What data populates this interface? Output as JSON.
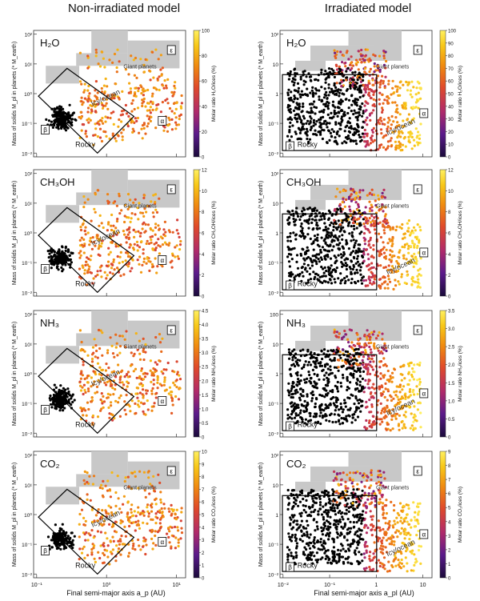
{
  "columns": [
    {
      "title": "Non-irradiated model"
    },
    {
      "title": "Irradiated model"
    }
  ],
  "shared": {
    "xlabel_left": "Final semi-major axis a_p (AU)",
    "xlabel_right": "Final semi-major axis a_pl (AU)",
    "ylabel_left": "Mass of solids M_pl in planets (* M_earth)",
    "ylabel_right": "Mass of solids M_pl in planets (* M_earth)",
    "region_labels": {
      "giant": "Giant planets",
      "icy": "Icy/ocean",
      "rocky": "Rocky"
    },
    "greek": {
      "epsilon": "ε",
      "alpha": "α",
      "beta": "β"
    }
  },
  "colors": {
    "panel_bg": "#ffffff",
    "gray_region": "#c8c8c8",
    "point_rocky": "#000000",
    "colormap": [
      "#1a0a3a",
      "#5a1a8a",
      "#b02a6a",
      "#e04a2a",
      "#f08a10",
      "#f8c818",
      "#fff060"
    ]
  },
  "chart_data": [
    {
      "type": "scatter",
      "species": "H2O",
      "species_label": "H₂O",
      "model": "Non-irradiated",
      "colorbar_label": "Molar ratio H₂O/ices (%)",
      "colorbar_ticks": [
        "0",
        "20",
        "40",
        "60",
        "80",
        "100"
      ],
      "clim": [
        0,
        100
      ],
      "xscale": "log",
      "yscale": "log",
      "xlim": [
        0.1,
        10
      ],
      "ylim": [
        0.01,
        100
      ],
      "x_ticks": [
        "10⁻¹",
        "10⁰",
        "10¹"
      ],
      "y_ticks": [
        "10⁻²",
        "10⁻¹",
        "10⁰",
        "10¹",
        "10²"
      ]
    },
    {
      "type": "scatter",
      "species": "H2O",
      "species_label": "H₂O",
      "model": "Irradiated",
      "colorbar_label": "Molar ratio H₂O/ices (%)",
      "colorbar_ticks": [
        "0",
        "10",
        "20",
        "30",
        "40",
        "50",
        "60",
        "70",
        "80",
        "90",
        "100"
      ],
      "clim": [
        0,
        100
      ],
      "xscale": "log",
      "yscale": "log",
      "xlim": [
        0.01,
        20
      ],
      "ylim": [
        0.01,
        100
      ],
      "x_ticks": [
        "10⁻²",
        "10⁻¹",
        "1",
        "10"
      ],
      "y_ticks": [
        "10⁻²",
        "10⁻¹",
        "1",
        "10",
        "10²"
      ]
    },
    {
      "type": "scatter",
      "species": "CH3OH",
      "species_label": "CH₃OH",
      "model": "Non-irradiated",
      "colorbar_label": "Molar ratio CH₃OH/ices (%)",
      "colorbar_ticks": [
        "0",
        "2",
        "4",
        "6",
        "8",
        "10",
        "12"
      ],
      "clim": [
        0,
        12
      ],
      "xscale": "log",
      "yscale": "log",
      "xlim": [
        0.1,
        10
      ],
      "ylim": [
        0.01,
        100
      ],
      "x_ticks": [
        "10⁻¹",
        "10⁰",
        "10¹"
      ],
      "y_ticks": [
        "10⁻²",
        "10⁻¹",
        "10⁰",
        "10¹",
        "10²"
      ]
    },
    {
      "type": "scatter",
      "species": "CH3OH",
      "species_label": "CH₃OH",
      "model": "Irradiated",
      "colorbar_label": "Molar ratio CH₃OH/ices (%)",
      "colorbar_ticks": [
        "0",
        "2",
        "4",
        "6",
        "8",
        "10",
        "12"
      ],
      "clim": [
        0,
        12
      ],
      "xscale": "log",
      "yscale": "log",
      "xlim": [
        0.01,
        20
      ],
      "ylim": [
        0.01,
        100
      ],
      "x_ticks": [
        "10⁻²",
        "10⁻¹",
        "1",
        "10"
      ],
      "y_ticks": [
        "10⁻²",
        "10⁻¹",
        "1",
        "10",
        "10²"
      ]
    },
    {
      "type": "scatter",
      "species": "NH3",
      "species_label": "NH₃",
      "model": "Non-irradiated",
      "colorbar_label": "Molar ratio NH₃/ices (%)",
      "colorbar_ticks": [
        "0",
        "0.5",
        "1.0",
        "1.5",
        "2.0",
        "2.5",
        "3.0",
        "3.5",
        "4.0",
        "4.5"
      ],
      "clim": [
        0,
        4.5
      ],
      "xscale": "log",
      "yscale": "log",
      "xlim": [
        0.1,
        10
      ],
      "ylim": [
        0.01,
        100
      ],
      "x_ticks": [
        "10⁻¹",
        "10⁰",
        "10¹"
      ],
      "y_ticks": [
        "10⁻²",
        "10⁻¹",
        "10⁰",
        "10¹",
        "10²"
      ]
    },
    {
      "type": "scatter",
      "species": "NH3",
      "species_label": "NH₃",
      "model": "Irradiated",
      "colorbar_label": "Molar ratio NH₃/ices (%)",
      "colorbar_ticks": [
        "0",
        "0.5",
        "1.0",
        "1.5",
        "2.0",
        "2.5",
        "3.0",
        "3.5"
      ],
      "clim": [
        0,
        3.5
      ],
      "xscale": "log",
      "yscale": "log",
      "xlim": [
        0.01,
        20
      ],
      "ylim": [
        0.01,
        100
      ],
      "x_ticks": [
        "10⁻²",
        "10⁻¹",
        "1",
        "10"
      ],
      "y_ticks": [
        "10⁻²",
        "10⁻¹",
        "1",
        "10",
        "100"
      ]
    },
    {
      "type": "scatter",
      "species": "CO2",
      "species_label": "CO₂",
      "model": "Non-irradiated",
      "colorbar_label": "Molar ratio CO₂/ices (%)",
      "colorbar_ticks": [
        "0",
        "1",
        "2",
        "3",
        "4",
        "5",
        "6",
        "7",
        "8",
        "9",
        "10"
      ],
      "clim": [
        0,
        10
      ],
      "xscale": "log",
      "yscale": "log",
      "xlim": [
        0.1,
        10
      ],
      "ylim": [
        0.01,
        100
      ],
      "x_ticks": [
        "10⁻¹",
        "10⁰",
        "10¹"
      ],
      "y_ticks": [
        "10⁻²",
        "10⁻¹",
        "10⁰",
        "10¹",
        "10²"
      ]
    },
    {
      "type": "scatter",
      "species": "CO2",
      "species_label": "CO₂",
      "model": "Irradiated",
      "colorbar_label": "Molar ratio CO₂/ices (%)",
      "colorbar_ticks": [
        "0",
        "1",
        "2",
        "3",
        "4",
        "5",
        "6",
        "7",
        "8",
        "9"
      ],
      "clim": [
        0,
        9
      ],
      "xscale": "log",
      "yscale": "log",
      "xlim": [
        0.01,
        20
      ],
      "ylim": [
        0.01,
        100
      ],
      "x_ticks": [
        "10⁻²",
        "10⁻¹",
        "1",
        "10"
      ],
      "y_ticks": [
        "10⁻²",
        "10⁻¹",
        "1",
        "10",
        "10²"
      ]
    }
  ]
}
